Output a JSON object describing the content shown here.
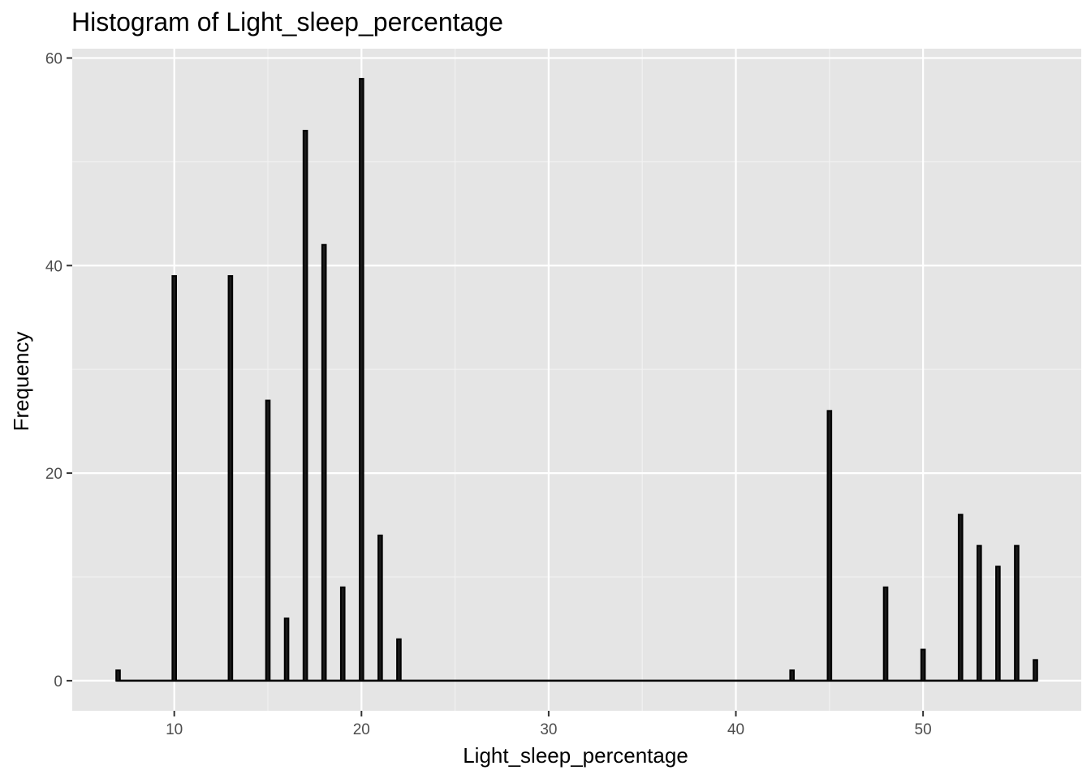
{
  "chart_data": {
    "type": "bar",
    "title": "Histogram of Light_sleep_percentage",
    "xlabel": "Light_sleep_percentage",
    "ylabel": "Frequency",
    "xlim": [
      4.55,
      58.45
    ],
    "ylim": [
      -2.9,
      60.9
    ],
    "x_ticks": [
      10,
      20,
      30,
      40,
      50
    ],
    "y_ticks": [
      0,
      20,
      40,
      60
    ],
    "grid": true,
    "legend": "none",
    "bin_width": 0.2,
    "bars": [
      {
        "x": 7,
        "count": 1
      },
      {
        "x": 10,
        "count": 39
      },
      {
        "x": 13,
        "count": 39
      },
      {
        "x": 15,
        "count": 27
      },
      {
        "x": 16,
        "count": 6
      },
      {
        "x": 17,
        "count": 53
      },
      {
        "x": 18,
        "count": 42
      },
      {
        "x": 19,
        "count": 9
      },
      {
        "x": 20,
        "count": 58
      },
      {
        "x": 21,
        "count": 14
      },
      {
        "x": 22,
        "count": 4
      },
      {
        "x": 43,
        "count": 1
      },
      {
        "x": 45,
        "count": 26
      },
      {
        "x": 48,
        "count": 9
      },
      {
        "x": 50,
        "count": 3
      },
      {
        "x": 52,
        "count": 16
      },
      {
        "x": 53,
        "count": 13
      },
      {
        "x": 54,
        "count": 11
      },
      {
        "x": 55,
        "count": 13
      },
      {
        "x": 56,
        "count": 2
      }
    ],
    "colors": {
      "panel": "#e5e5e5",
      "grid_major": "#ffffff",
      "grid_minor": "#f2f2f2",
      "bar_fill": "#1a1a1a",
      "bar_outline": "#000000",
      "tick": "#333333"
    }
  }
}
